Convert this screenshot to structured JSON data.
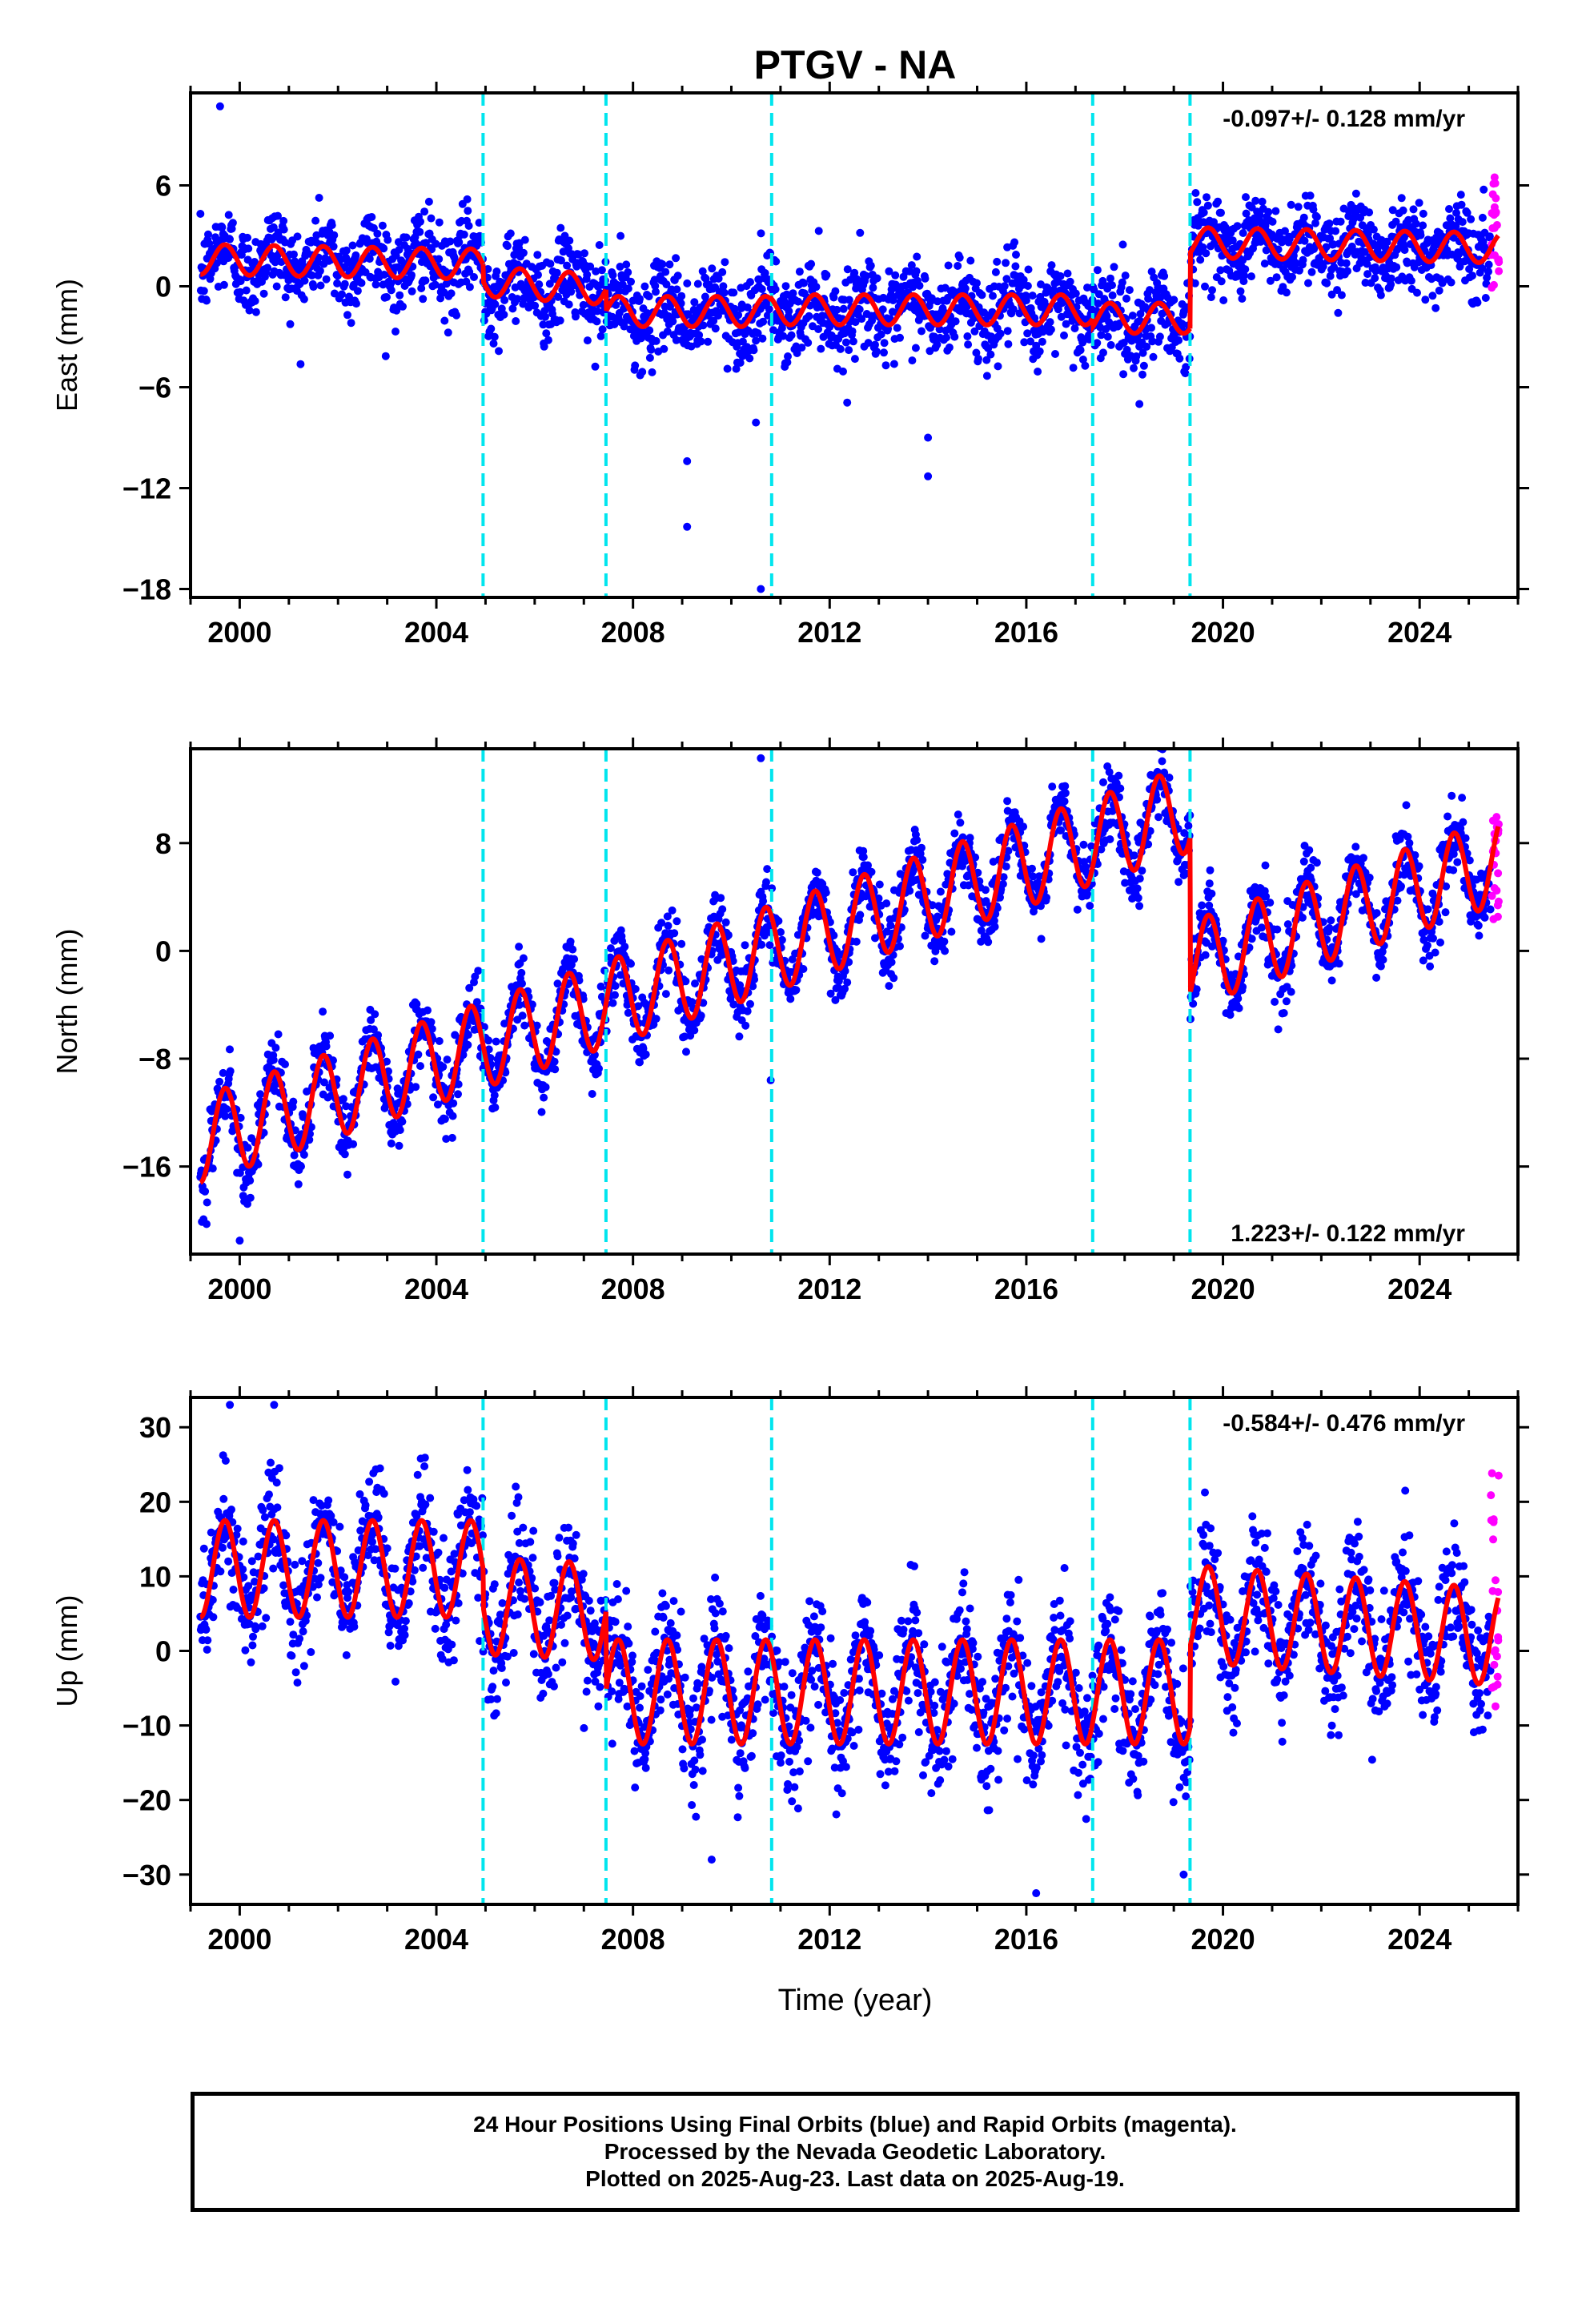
{
  "title": "PTGV - NA",
  "xlabel": "Time (year)",
  "footer": {
    "line1": "24 Hour Positions Using Final Orbits (blue) and Rapid Orbits (magenta).",
    "line2": "Processed by the Nevada Geodetic Laboratory.",
    "line3": "Plotted on 2025-Aug-23. Last data on 2025-Aug-19."
  },
  "colors": {
    "final_orbits": "#0000ff",
    "rapid_orbits": "#ff00ff",
    "model": "#ff0000",
    "steps": "#00e5ee",
    "frame": "#000000"
  },
  "step_epochs": [
    2004.95,
    2007.45,
    2010.82,
    2017.35,
    2019.33
  ],
  "chart_data": [
    {
      "type": "scatter",
      "component": "east",
      "ylabel": "East (mm)",
      "velocity": "-0.097+/- 0.128 mm/yr",
      "xlim": [
        1999,
        2026
      ],
      "ylim": [
        -18.5,
        11.5
      ],
      "xticks": [
        2000,
        2004,
        2008,
        2012,
        2016,
        2020,
        2024
      ],
      "yticks": [
        6,
        0,
        -6,
        -12,
        -18
      ],
      "ytick_labels": [
        "6",
        "0",
        "−6",
        "−12",
        "−18"
      ],
      "model_segments": [
        {
          "start": 1999.2,
          "end": 2004.95,
          "offset": 1.6,
          "trend": -0.05,
          "amp": 0.9
        },
        {
          "start": 2004.95,
          "end": 2007.45,
          "offset": 0.3,
          "trend": -0.2,
          "amp": 0.9
        },
        {
          "start": 2007.45,
          "end": 2010.82,
          "offset": -1.5,
          "trend": 0.0,
          "amp": 0.9
        },
        {
          "start": 2010.82,
          "end": 2017.35,
          "offset": -1.4,
          "trend": 0.0,
          "amp": 0.9
        },
        {
          "start": 2017.35,
          "end": 2019.33,
          "offset": -1.9,
          "trend": 0.0,
          "amp": 0.9
        },
        {
          "start": 2019.33,
          "end": 2025.6,
          "offset": 2.6,
          "trend": -0.05,
          "amp": 0.9
        }
      ],
      "scatter_sd": 1.3,
      "outliers": [
        [
          1999.6,
          10.7
        ],
        [
          2009.1,
          -10.4
        ],
        [
          2009.1,
          -14.3
        ],
        [
          2010.6,
          -18.0
        ],
        [
          2014.0,
          -9.0
        ],
        [
          2014.0,
          -11.3
        ],
        [
          2010.5,
          -8.1
        ],
        [
          2018.3,
          -7.0
        ]
      ],
      "rapid": {
        "start": 2025.45,
        "end": 2025.62,
        "min": -1.0,
        "max": 7.0
      }
    },
    {
      "type": "scatter",
      "component": "north",
      "ylabel": "North (mm)",
      "velocity": "1.223+/- 0.122 mm/yr",
      "xlim": [
        1999,
        2026
      ],
      "ylim": [
        -22.5,
        15.0
      ],
      "xticks": [
        2000,
        2004,
        2008,
        2012,
        2016,
        2020,
        2024
      ],
      "yticks": [
        8,
        0,
        -8,
        -16
      ],
      "ytick_labels": [
        "8",
        "0",
        "−8",
        "−16"
      ],
      "model_segments": [
        {
          "start": 1999.2,
          "end": 2019.33,
          "offset": -14.0,
          "trend": 1.22,
          "amp": 3.2
        },
        {
          "start": 2019.33,
          "end": 2025.6,
          "offset": -1.0,
          "trend": 1.22,
          "amp": 3.2
        }
      ],
      "scatter_sd": 1.3,
      "outliers": [
        [
          2010.6,
          14.3
        ],
        [
          2010.8,
          -9.6
        ],
        [
          2000.0,
          -21.5
        ]
      ],
      "rapid": {
        "start": 2025.45,
        "end": 2025.62,
        "min": 2.0,
        "max": 10.0
      }
    },
    {
      "type": "scatter",
      "component": "up",
      "ylabel": "Up (mm)",
      "velocity": "-0.584+/- 0.476 mm/yr",
      "xlim": [
        1999,
        2026
      ],
      "ylim": [
        -34,
        34
      ],
      "xticks": [
        2000,
        2004,
        2008,
        2012,
        2016,
        2020,
        2024
      ],
      "yticks": [
        30,
        20,
        10,
        0,
        -10,
        -20,
        -30
      ],
      "ytick_labels": [
        "30",
        "20",
        "10",
        "0",
        "−10",
        "−20",
        "−30"
      ],
      "model_segments": [
        {
          "start": 1999.2,
          "end": 2004.95,
          "offset": 11.0,
          "trend": 0.0,
          "amp": 6.5
        },
        {
          "start": 2004.95,
          "end": 2007.45,
          "offset": 6.0,
          "trend": -0.3,
          "amp": 6.5
        },
        {
          "start": 2007.45,
          "end": 2019.33,
          "offset": -5.5,
          "trend": 0.0,
          "amp": 7.0
        },
        {
          "start": 2019.33,
          "end": 2025.6,
          "offset": 5.0,
          "trend": -0.5,
          "amp": 6.5
        }
      ],
      "scatter_sd": 4.0,
      "outliers": [
        [
          1999.8,
          33.0
        ],
        [
          2000.7,
          33.0
        ],
        [
          2016.2,
          -32.5
        ],
        [
          2009.6,
          -28.0
        ],
        [
          2019.2,
          -30.0
        ]
      ],
      "rapid": {
        "start": 2025.45,
        "end": 2025.62,
        "min": -8.0,
        "max": 26.0
      }
    }
  ]
}
